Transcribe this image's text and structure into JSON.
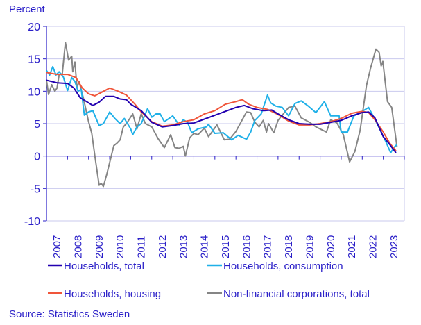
{
  "chart_data": {
    "type": "line",
    "ylabel": "Percent",
    "ylim": [
      -10,
      20
    ],
    "yticks": [
      "20",
      "15",
      "10",
      "5",
      "0",
      "-5",
      "-10"
    ],
    "ytick_values": [
      20,
      15,
      10,
      5,
      0,
      -5,
      -10
    ],
    "xlim": [
      2007,
      2024
    ],
    "xticks": [
      "2007",
      "2008",
      "2009",
      "2010",
      "2011",
      "2012",
      "2013",
      "2014",
      "2015",
      "2016",
      "2017",
      "2018",
      "2019",
      "2020",
      "2021",
      "2022",
      "2023"
    ],
    "grid": true,
    "legend_placement": "bottom",
    "series": [
      {
        "name": "Households, total",
        "color": "#2200b0",
        "points": [
          [
            2007,
            11.7
          ],
          [
            2007.5,
            11.3
          ],
          [
            2008,
            11.2
          ],
          [
            2008.3,
            10.5
          ],
          [
            2008.6,
            9.0
          ],
          [
            2009,
            8.2
          ],
          [
            2009.2,
            7.8
          ],
          [
            2009.5,
            8.3
          ],
          [
            2009.8,
            9.2
          ],
          [
            2010.2,
            9.2
          ],
          [
            2010.5,
            8.8
          ],
          [
            2010.8,
            8.7
          ],
          [
            2011,
            8.0
          ],
          [
            2011.5,
            7.0
          ],
          [
            2012,
            5.2
          ],
          [
            2012.5,
            4.5
          ],
          [
            2013,
            4.7
          ],
          [
            2013.5,
            5.0
          ],
          [
            2014,
            5.1
          ],
          [
            2014.5,
            5.7
          ],
          [
            2015,
            6.3
          ],
          [
            2015.5,
            6.9
          ],
          [
            2016,
            7.5
          ],
          [
            2016.4,
            7.8
          ],
          [
            2016.8,
            7.3
          ],
          [
            2017.3,
            7.0
          ],
          [
            2017.7,
            7.1
          ],
          [
            2018,
            6.5
          ],
          [
            2018.5,
            5.6
          ],
          [
            2019,
            5.0
          ],
          [
            2019.5,
            4.9
          ],
          [
            2020,
            4.9
          ],
          [
            2020.5,
            5.2
          ],
          [
            2021,
            5.5
          ],
          [
            2021.5,
            6.2
          ],
          [
            2022,
            6.7
          ],
          [
            2022.3,
            6.8
          ],
          [
            2022.6,
            5.9
          ],
          [
            2023,
            3.0
          ],
          [
            2023.3,
            1.8
          ],
          [
            2023.6,
            0.5
          ]
        ]
      },
      {
        "name": "Households, consumption",
        "color": "#1fb0e8",
        "points": [
          [
            2007,
            13.2
          ],
          [
            2007.15,
            12.5
          ],
          [
            2007.3,
            13.8
          ],
          [
            2007.45,
            12.5
          ],
          [
            2007.6,
            13.0
          ],
          [
            2007.8,
            12.2
          ],
          [
            2008,
            10.1
          ],
          [
            2008.2,
            12.1
          ],
          [
            2008.35,
            11.5
          ],
          [
            2008.5,
            10.0
          ],
          [
            2008.65,
            10.3
          ],
          [
            2008.8,
            6.3
          ],
          [
            2009,
            6.8
          ],
          [
            2009.2,
            7.0
          ],
          [
            2009.5,
            4.7
          ],
          [
            2009.7,
            5.0
          ],
          [
            2010,
            6.8
          ],
          [
            2010.25,
            5.8
          ],
          [
            2010.5,
            5.0
          ],
          [
            2010.7,
            5.8
          ],
          [
            2011,
            4.2
          ],
          [
            2011.1,
            3.3
          ],
          [
            2011.3,
            4.5
          ],
          [
            2011.5,
            5.0
          ],
          [
            2011.8,
            7.3
          ],
          [
            2012,
            6.0
          ],
          [
            2012.2,
            6.5
          ],
          [
            2012.4,
            6.5
          ],
          [
            2012.6,
            5.3
          ],
          [
            2013,
            6.2
          ],
          [
            2013.3,
            4.8
          ],
          [
            2013.5,
            5.6
          ],
          [
            2013.7,
            5.2
          ],
          [
            2013.9,
            3.6
          ],
          [
            2014.2,
            4.2
          ],
          [
            2014.6,
            4.5
          ],
          [
            2014.7,
            4.9
          ],
          [
            2015,
            3.5
          ],
          [
            2015.4,
            3.6
          ],
          [
            2015.8,
            2.5
          ],
          [
            2016.1,
            3.2
          ],
          [
            2016.5,
            2.6
          ],
          [
            2016.7,
            3.7
          ],
          [
            2016.9,
            5.5
          ],
          [
            2017.2,
            6.5
          ],
          [
            2017.5,
            9.4
          ],
          [
            2017.65,
            8.2
          ],
          [
            2017.9,
            7.7
          ],
          [
            2018.2,
            7.5
          ],
          [
            2018.5,
            6.2
          ],
          [
            2018.8,
            8.1
          ],
          [
            2019.1,
            8.5
          ],
          [
            2019.4,
            7.8
          ],
          [
            2019.8,
            6.7
          ],
          [
            2020.2,
            8.4
          ],
          [
            2020.5,
            6.2
          ],
          [
            2020.9,
            6.2
          ],
          [
            2021,
            3.7
          ],
          [
            2021.3,
            3.7
          ],
          [
            2021.6,
            6.2
          ],
          [
            2021.9,
            6.7
          ],
          [
            2022.3,
            7.5
          ],
          [
            2022.55,
            6.0
          ],
          [
            2022.9,
            3.7
          ],
          [
            2023.15,
            2.0
          ],
          [
            2023.35,
            0.5
          ],
          [
            2023.5,
            1.3
          ],
          [
            2023.65,
            1.8
          ]
        ]
      },
      {
        "name": "Households, housing",
        "color": "#f0553a",
        "points": [
          [
            2007,
            12.9
          ],
          [
            2007.5,
            12.6
          ],
          [
            2008,
            12.6
          ],
          [
            2008.4,
            12.1
          ],
          [
            2008.7,
            10.5
          ],
          [
            2009,
            9.6
          ],
          [
            2009.3,
            9.3
          ],
          [
            2009.6,
            9.8
          ],
          [
            2010,
            10.5
          ],
          [
            2010.4,
            10.0
          ],
          [
            2010.8,
            9.4
          ],
          [
            2011.2,
            8.0
          ],
          [
            2011.5,
            6.8
          ],
          [
            2012,
            5.3
          ],
          [
            2012.5,
            4.6
          ],
          [
            2013,
            4.8
          ],
          [
            2013.5,
            5.3
          ],
          [
            2014,
            5.6
          ],
          [
            2014.5,
            6.5
          ],
          [
            2015,
            7.0
          ],
          [
            2015.5,
            8.0
          ],
          [
            2016,
            8.4
          ],
          [
            2016.3,
            8.7
          ],
          [
            2016.6,
            8.0
          ],
          [
            2017,
            7.5
          ],
          [
            2017.5,
            7.2
          ],
          [
            2018,
            6.4
          ],
          [
            2018.5,
            5.4
          ],
          [
            2019,
            4.8
          ],
          [
            2019.5,
            4.8
          ],
          [
            2020,
            5.0
          ],
          [
            2020.5,
            5.3
          ],
          [
            2021,
            5.8
          ],
          [
            2021.5,
            6.6
          ],
          [
            2022,
            6.9
          ],
          [
            2022.3,
            6.7
          ],
          [
            2022.6,
            5.6
          ],
          [
            2023,
            3.7
          ],
          [
            2023.3,
            2.0
          ],
          [
            2023.6,
            0.8
          ]
        ]
      },
      {
        "name": "Non-financial corporations, total",
        "color": "#858585",
        "points": [
          [
            2007,
            11.7
          ],
          [
            2007.1,
            9.5
          ],
          [
            2007.25,
            11.0
          ],
          [
            2007.4,
            10.0
          ],
          [
            2007.5,
            10.5
          ],
          [
            2007.6,
            12.5
          ],
          [
            2007.75,
            12.7
          ],
          [
            2007.9,
            17.5
          ],
          [
            2008.05,
            14.8
          ],
          [
            2008.2,
            15.4
          ],
          [
            2008.25,
            13.0
          ],
          [
            2008.35,
            14.5
          ],
          [
            2008.45,
            10.5
          ],
          [
            2008.55,
            11.5
          ],
          [
            2008.75,
            9.0
          ],
          [
            2009,
            5.3
          ],
          [
            2009.15,
            3.5
          ],
          [
            2009.3,
            0.0
          ],
          [
            2009.5,
            -4.5
          ],
          [
            2009.6,
            -4.2
          ],
          [
            2009.7,
            -4.7
          ],
          [
            2009.85,
            -3.0
          ],
          [
            2010,
            -1.0
          ],
          [
            2010.2,
            1.6
          ],
          [
            2010.35,
            2.0
          ],
          [
            2010.5,
            2.5
          ],
          [
            2010.65,
            4.5
          ],
          [
            2010.8,
            5.0
          ],
          [
            2011.1,
            6.5
          ],
          [
            2011.3,
            4.2
          ],
          [
            2011.5,
            6.5
          ],
          [
            2011.7,
            5.0
          ],
          [
            2012,
            4.5
          ],
          [
            2012.3,
            2.7
          ],
          [
            2012.6,
            1.3
          ],
          [
            2012.9,
            3.3
          ],
          [
            2013.1,
            1.3
          ],
          [
            2013.3,
            1.2
          ],
          [
            2013.5,
            1.5
          ],
          [
            2013.6,
            0.0
          ],
          [
            2013.8,
            2.8
          ],
          [
            2014,
            3.5
          ],
          [
            2014.2,
            3.3
          ],
          [
            2014.5,
            4.3
          ],
          [
            2014.7,
            3.0
          ],
          [
            2015.1,
            4.8
          ],
          [
            2015.45,
            2.5
          ],
          [
            2015.7,
            2.6
          ],
          [
            2016,
            3.8
          ],
          [
            2016.5,
            6.8
          ],
          [
            2016.7,
            6.7
          ],
          [
            2016.9,
            5.2
          ],
          [
            2017.1,
            4.5
          ],
          [
            2017.3,
            5.5
          ],
          [
            2017.45,
            3.7
          ],
          [
            2017.55,
            5.0
          ],
          [
            2017.8,
            3.6
          ],
          [
            2018,
            5.5
          ],
          [
            2018.5,
            7.5
          ],
          [
            2018.8,
            7.7
          ],
          [
            2019.1,
            5.9
          ],
          [
            2019.5,
            5.2
          ],
          [
            2019.8,
            4.5
          ],
          [
            2020.3,
            3.7
          ],
          [
            2020.5,
            5.6
          ],
          [
            2020.8,
            5.1
          ],
          [
            2021.1,
            3.3
          ],
          [
            2021.3,
            0.5
          ],
          [
            2021.4,
            -0.9
          ],
          [
            2021.65,
            0.7
          ],
          [
            2021.9,
            4.0
          ],
          [
            2022.2,
            10.9
          ],
          [
            2022.4,
            13.6
          ],
          [
            2022.65,
            16.5
          ],
          [
            2022.8,
            16.0
          ],
          [
            2022.9,
            13.9
          ],
          [
            2022.98,
            14.6
          ],
          [
            2023.2,
            8.4
          ],
          [
            2023.4,
            7.5
          ],
          [
            2023.65,
            1.4
          ]
        ]
      }
    ]
  },
  "source": "Source: Statistics Sweden"
}
